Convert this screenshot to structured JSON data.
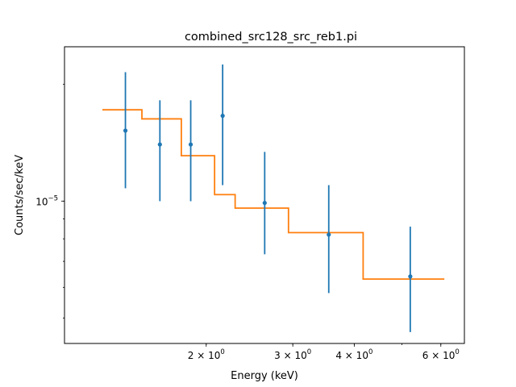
{
  "chart_data": {
    "type": "scatter",
    "title": "combined_src128_src_reb1.pi",
    "xlabel": "Energy (keV)",
    "ylabel": "Counts/sec/keV",
    "xscale": "log",
    "yscale": "log",
    "xlim": [
      1.03,
      6.7
    ],
    "ylim": [
      4.3e-06,
      2.5e-05
    ],
    "grid": false,
    "x_ticks": [
      {
        "value": 2,
        "base": "2 × 10",
        "exp": "0"
      },
      {
        "value": 3,
        "base": "3 × 10",
        "exp": "0"
      },
      {
        "value": 4,
        "base": "4 × 10",
        "exp": "0"
      },
      {
        "value": 6,
        "base": "6 × 10",
        "exp": "0"
      }
    ],
    "y_ticks": [
      {
        "value": 1e-05,
        "base": "10",
        "exp": "−5"
      }
    ],
    "data_series": {
      "color": "#1f77b4",
      "points": [
        {
          "x": 1.37,
          "y": 1.52e-05,
          "ylo": 1.08e-05,
          "yhi": 2.15e-05
        },
        {
          "x": 1.61,
          "y": 1.4e-05,
          "ylo": 1e-05,
          "yhi": 1.82e-05
        },
        {
          "x": 1.86,
          "y": 1.4e-05,
          "ylo": 1e-05,
          "yhi": 1.82e-05
        },
        {
          "x": 2.16,
          "y": 1.66e-05,
          "ylo": 1.1e-05,
          "yhi": 2.25e-05
        },
        {
          "x": 2.63,
          "y": 9.9e-06,
          "ylo": 7.3e-06,
          "yhi": 1.34e-05
        },
        {
          "x": 3.55,
          "y": 8.2e-06,
          "ylo": 5.8e-06,
          "yhi": 1.1e-05
        },
        {
          "x": 5.2,
          "y": 6.4e-06,
          "ylo": 4.6e-06,
          "yhi": 8.6e-06
        }
      ]
    },
    "model_series": {
      "color": "#ff7f0e",
      "steps": [
        {
          "x0": 1.23,
          "x1": 1.48,
          "y": 1.72e-05
        },
        {
          "x0": 1.48,
          "x1": 1.78,
          "y": 1.63e-05
        },
        {
          "x0": 1.78,
          "x1": 2.08,
          "y": 1.31e-05
        },
        {
          "x0": 2.08,
          "x1": 2.29,
          "y": 1.04e-05
        },
        {
          "x0": 2.29,
          "x1": 2.94,
          "y": 9.6e-06
        },
        {
          "x0": 2.94,
          "x1": 4.17,
          "y": 8.3e-06
        },
        {
          "x0": 4.17,
          "x1": 6.1,
          "y": 6.3e-06
        }
      ]
    }
  }
}
